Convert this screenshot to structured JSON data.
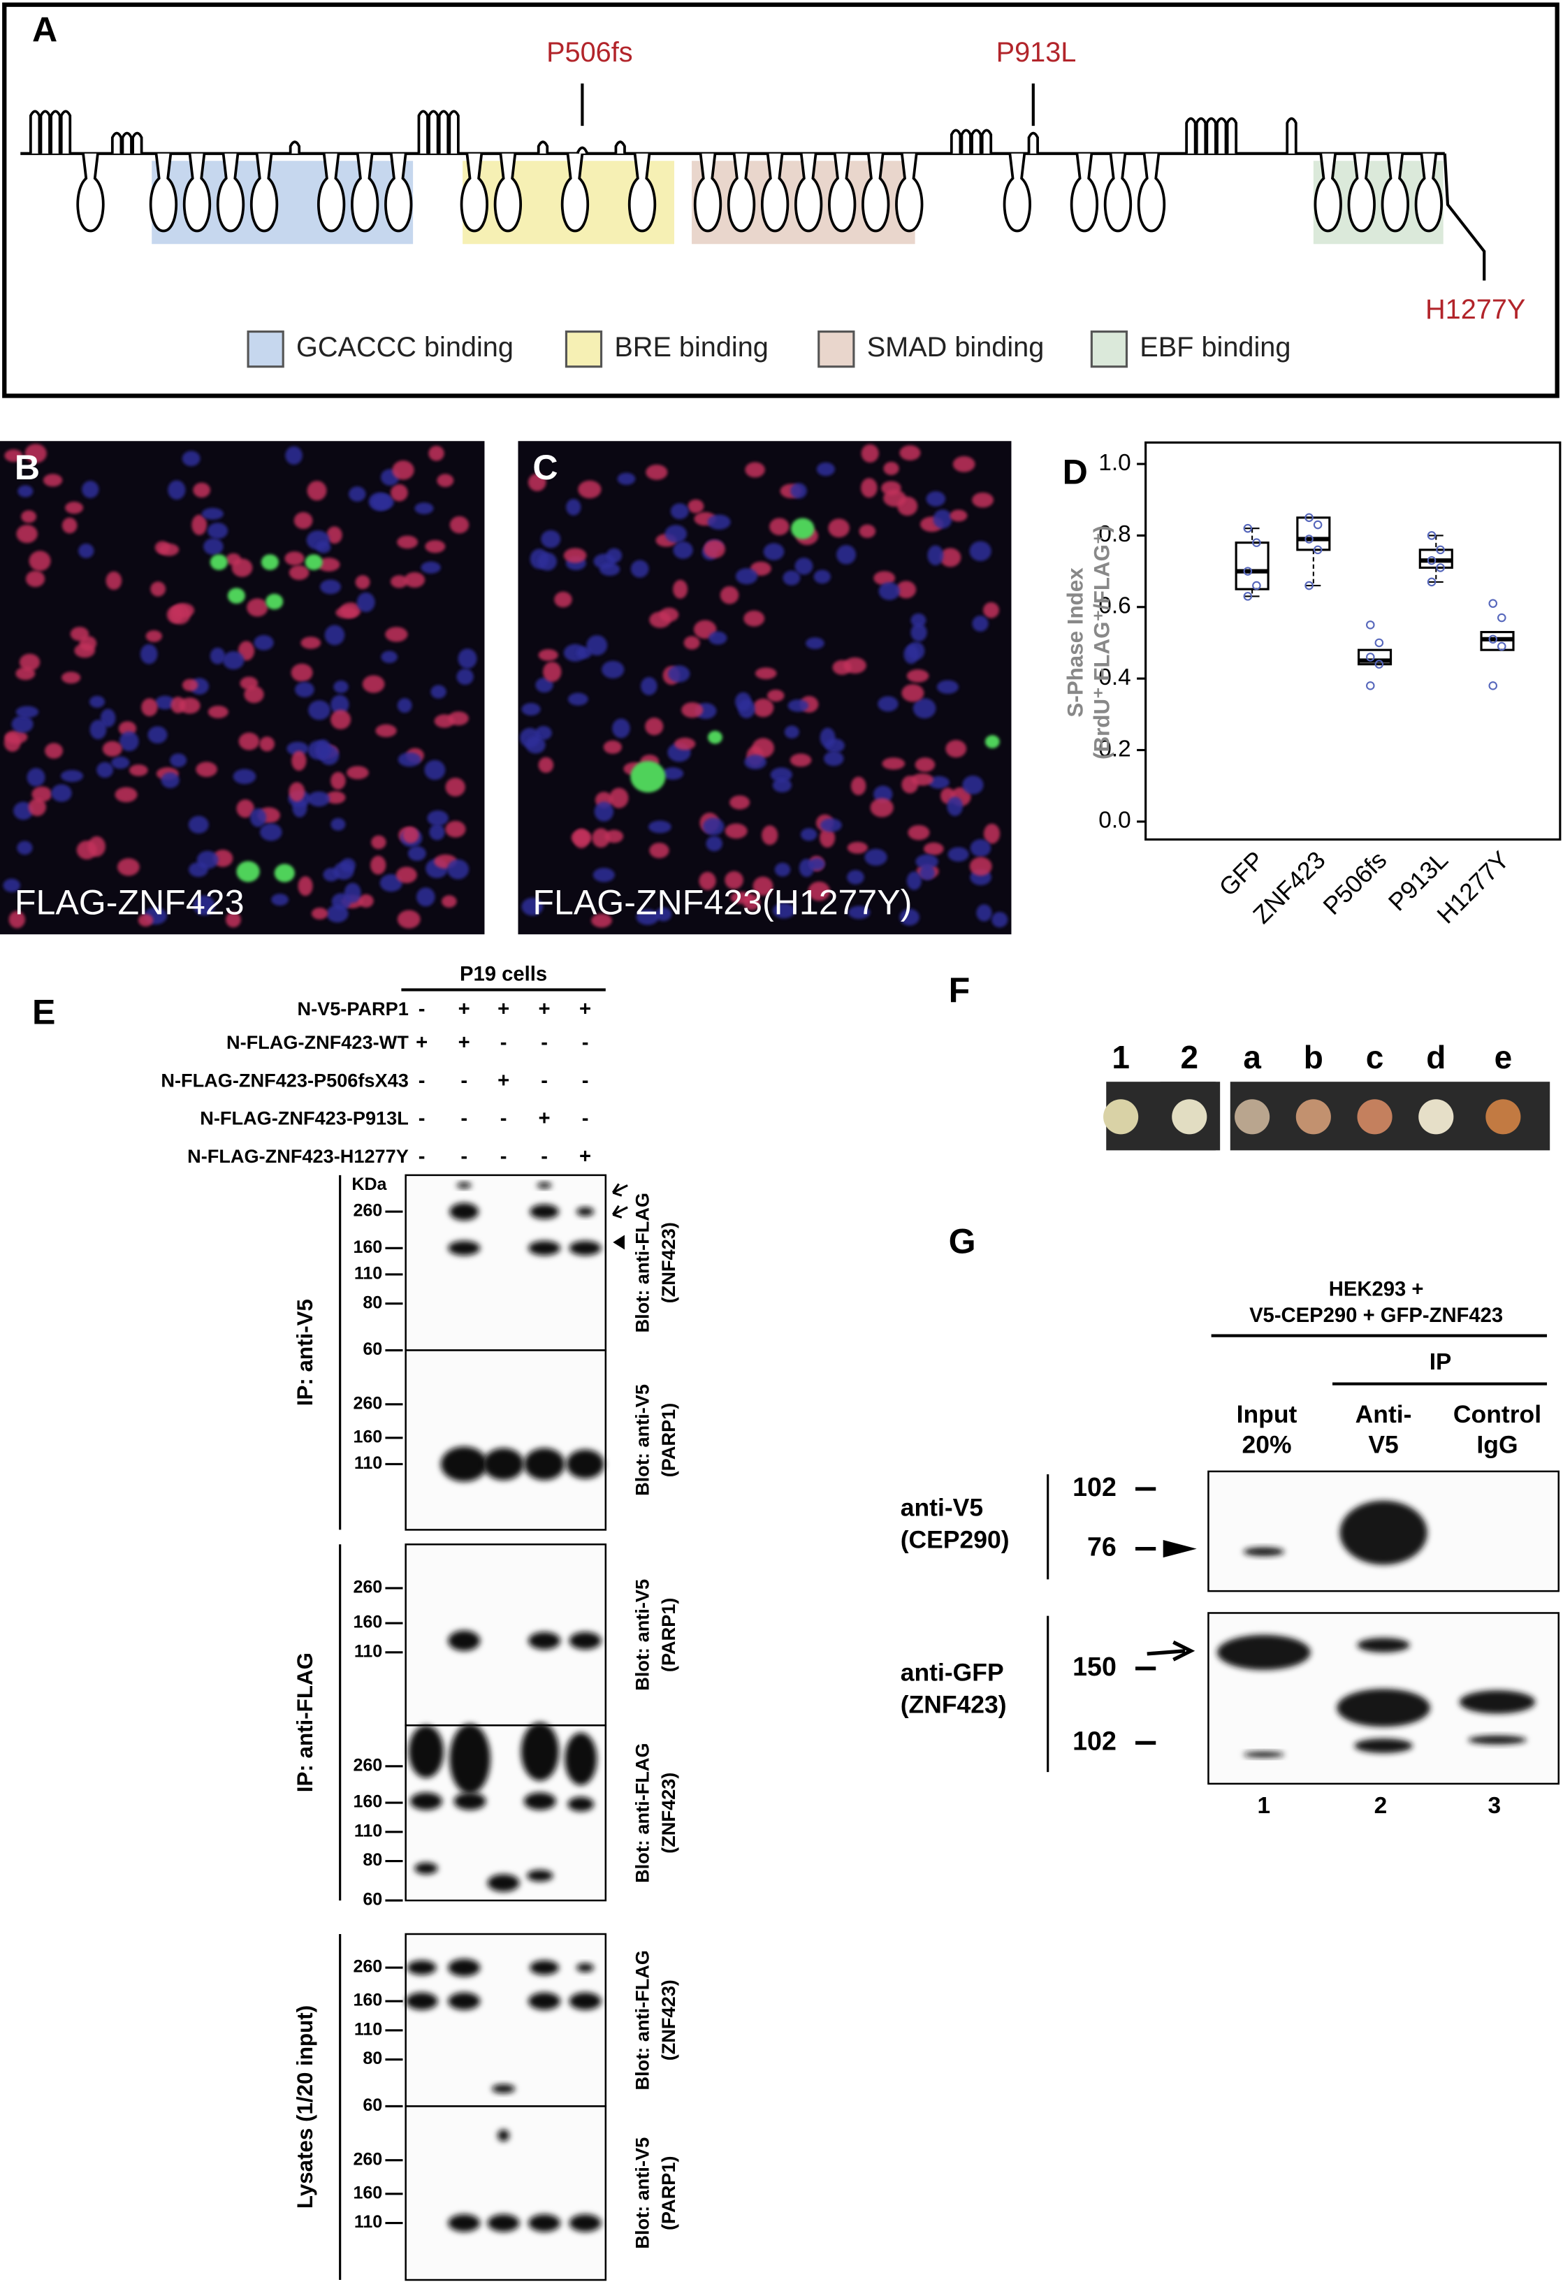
{
  "panel_a": {
    "label": "A",
    "mutations": [
      "P506fs",
      "P913L",
      "H1277Y"
    ],
    "legend": [
      {
        "label": "GCACCC binding",
        "color": "#c6d7ee"
      },
      {
        "label": "BRE binding",
        "color": "#f6f0b4"
      },
      {
        "label": "SMAD binding",
        "color": "#e9d6cc"
      },
      {
        "label": "EBF binding",
        "color": "#dbe9da"
      }
    ]
  },
  "panel_b": {
    "label": "B",
    "caption": "FLAG-ZNF423"
  },
  "panel_c": {
    "label": "C",
    "caption": "FLAG-ZNF423(H1277Y)"
  },
  "chart_data": {
    "type": "box",
    "label": "D",
    "ylabel": "S-Phase Index",
    "ylabel_2": "(BrdU⁺ FLAG⁺/FLAG⁺)",
    "categories": [
      "GFP",
      "ZNF423",
      "P506fs",
      "P913L",
      "H1277Y"
    ],
    "min": [
      0.63,
      0.66,
      0.44,
      0.67,
      0.48
    ],
    "q1": [
      0.65,
      0.76,
      0.44,
      0.71,
      0.48
    ],
    "median": [
      0.7,
      0.79,
      0.45,
      0.73,
      0.51
    ],
    "q3": [
      0.78,
      0.85,
      0.48,
      0.76,
      0.53
    ],
    "max": [
      0.82,
      0.85,
      0.48,
      0.8,
      0.53
    ],
    "points": [
      [
        0.82,
        0.78,
        0.7,
        0.66,
        0.63
      ],
      [
        0.85,
        0.83,
        0.79,
        0.76,
        0.66
      ],
      [
        0.55,
        0.5,
        0.46,
        0.44,
        0.38
      ],
      [
        0.8,
        0.76,
        0.73,
        0.71,
        0.67
      ],
      [
        0.61,
        0.57,
        0.51,
        0.49,
        0.38
      ]
    ],
    "ylim": [
      -0.05,
      1.06
    ],
    "yticks": [
      {
        "value": 0,
        "label": "0.0"
      },
      0.2,
      0.4,
      0.6,
      0.8,
      {
        "value": 1,
        "label": "1.0"
      }
    ]
  },
  "panel_e": {
    "label": "E",
    "header": "P19 cells",
    "kda": "KDa",
    "rows": [
      {
        "name": "N-V5-PARP1",
        "signs": [
          "-",
          "+",
          "+",
          "+",
          "+"
        ]
      },
      {
        "name": "N-FLAG-ZNF423-WT",
        "signs": [
          "+",
          "+",
          "-",
          "-",
          "-"
        ]
      },
      {
        "name": "N-FLAG-ZNF423-P506fsX43",
        "signs": [
          "-",
          "-",
          "+",
          "-",
          "-"
        ]
      },
      {
        "name": "N-FLAG-ZNF423-P913L",
        "signs": [
          "-",
          "-",
          "-",
          "+",
          "-"
        ]
      },
      {
        "name": "N-FLAG-ZNF423-H1277Y",
        "signs": [
          "-",
          "-",
          "-",
          "-",
          "+"
        ]
      }
    ],
    "groups": [
      {
        "label": "IP: anti-V5",
        "blots": [
          {
            "markers": [
              260,
              160,
              110,
              80,
              60
            ],
            "label": "Blot: anti-FLAG",
            "sublabel": "(ZNF423)"
          },
          {
            "markers": [
              260,
              160,
              110
            ],
            "label": "Blot: anti-V5",
            "sublabel": "(PARP1)"
          }
        ]
      },
      {
        "label": "IP: anti-FLAG",
        "blots": [
          {
            "markers": [
              260,
              160,
              110
            ],
            "label": "Blot: anti-V5",
            "sublabel": "(PARP1)"
          },
          {
            "markers": [
              260,
              160,
              110,
              80,
              60
            ],
            "label": "Blot: anti-FLAG",
            "sublabel": "(ZNF423)"
          }
        ]
      },
      {
        "label": "Lysates (1/20 input)",
        "blots": [
          {
            "markers": [
              260,
              160,
              110,
              80,
              60
            ],
            "label": "Blot: anti-FLAG",
            "sublabel": "(ZNF423)"
          },
          {
            "markers": [
              260,
              160,
              110
            ],
            "label": "Blot: anti-V5",
            "sublabel": "(PARP1)"
          }
        ]
      }
    ]
  },
  "panel_f": {
    "label": "F",
    "colonies": [
      {
        "label": "1",
        "color": "#d9d2a6"
      },
      {
        "label": "2",
        "color": "#e2ddc2"
      },
      {
        "label": "a",
        "color": "#b9a58e"
      },
      {
        "label": "b",
        "color": "#c2916f"
      },
      {
        "label": "c",
        "color": "#c4805e"
      },
      {
        "label": "d",
        "color": "#e6dfc8"
      },
      {
        "label": "e",
        "color": "#c27a42"
      }
    ]
  },
  "panel_g": {
    "label": "G",
    "header": [
      "HEK293 +",
      "V5-CEP290 + GFP-ZNF423"
    ],
    "ip": "IP",
    "columns": [
      [
        "Input",
        "20%"
      ],
      [
        "Anti-",
        "V5"
      ],
      [
        "Control",
        "IgG"
      ]
    ],
    "blots": [
      {
        "label": [
          "anti-V5",
          "(CEP290)"
        ],
        "markers": [
          102,
          76
        ]
      },
      {
        "label": [
          "anti-GFP",
          "(ZNF423)"
        ],
        "markers": [
          150,
          102
        ]
      }
    ],
    "lanes": [
      "1",
      "2",
      "3"
    ]
  }
}
